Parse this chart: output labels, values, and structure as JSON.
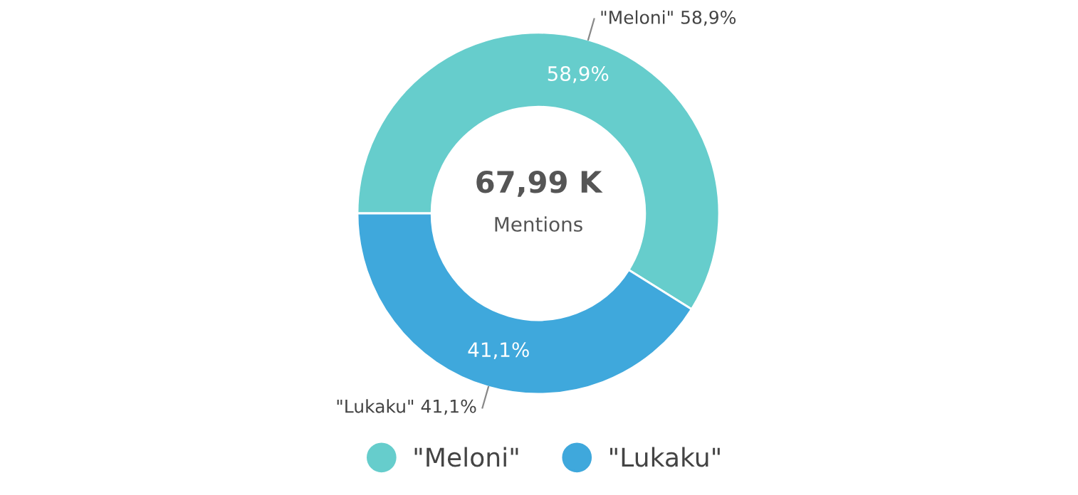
{
  "chart_data": {
    "type": "donut",
    "categories": [
      "\"Meloni\"",
      "\"Lukaku\""
    ],
    "values": [
      58.9,
      41.1
    ],
    "colors": [
      "#66cdcc",
      "#3fa8dc"
    ],
    "value_labels": [
      "58,9%",
      "41,1%"
    ],
    "annotations": [
      "67,99 K",
      "Mentions"
    ],
    "legend": "bottom"
  }
}
